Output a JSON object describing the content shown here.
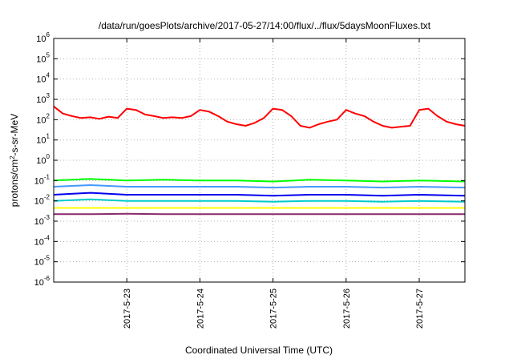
{
  "chart_data": {
    "type": "line",
    "title": "/data/run/goesPlots/archive/2017-05-27/14:00/flux/../flux/5daysMoonFluxes.txt",
    "xlabel": "Coordinated Universal Time (UTC)",
    "ylabel": {
      "pre": "protons/cm",
      "sup": "2",
      "post": "-s-sr-MeV"
    },
    "yscale": "log",
    "ylim": [
      1e-06,
      1000000.0
    ],
    "y_ticks": [
      {
        "exp": "-6",
        "value": 1e-06
      },
      {
        "exp": "-5",
        "value": 1e-05
      },
      {
        "exp": "-4",
        "value": 0.0001
      },
      {
        "exp": "-3",
        "value": 0.001
      },
      {
        "exp": "-2",
        "value": 0.01
      },
      {
        "exp": "-1",
        "value": 0.1
      },
      {
        "exp": "0",
        "value": 1
      },
      {
        "exp": "1",
        "value": 10
      },
      {
        "exp": "2",
        "value": 100
      },
      {
        "exp": "3",
        "value": 1000
      },
      {
        "exp": "4",
        "value": 10000
      },
      {
        "exp": "5",
        "value": 100000
      },
      {
        "exp": "6",
        "value": 1000000
      }
    ],
    "y_tick_base": "10",
    "xlim": [
      "2017-05-22 00:00",
      "2017-05-27 15:00"
    ],
    "x_ticks": [
      {
        "label": "2017-5-23",
        "date": "2017-05-23 00:00"
      },
      {
        "label": "2017-5-24",
        "date": "2017-05-24 00:00"
      },
      {
        "label": "2017-5-25",
        "date": "2017-05-25 00:00"
      },
      {
        "label": "2017-5-26",
        "date": "2017-05-26 00:00"
      },
      {
        "label": "2017-5-27",
        "date": "2017-05-27 00:00"
      }
    ],
    "grid": true,
    "series": [
      {
        "color": "#ff0000",
        "x": [
          "2017-05-22 00:00",
          "2017-05-22 03:00",
          "2017-05-22 06:00",
          "2017-05-22 09:00",
          "2017-05-22 12:00",
          "2017-05-22 15:00",
          "2017-05-22 18:00",
          "2017-05-22 21:00",
          "2017-05-23 00:00",
          "2017-05-23 03:00",
          "2017-05-23 06:00",
          "2017-05-23 09:00",
          "2017-05-23 12:00",
          "2017-05-23 15:00",
          "2017-05-23 18:00",
          "2017-05-23 21:00",
          "2017-05-24 00:00",
          "2017-05-24 03:00",
          "2017-05-24 06:00",
          "2017-05-24 09:00",
          "2017-05-24 12:00",
          "2017-05-24 15:00",
          "2017-05-24 18:00",
          "2017-05-24 21:00",
          "2017-05-25 00:00",
          "2017-05-25 03:00",
          "2017-05-25 06:00",
          "2017-05-25 09:00",
          "2017-05-25 12:00",
          "2017-05-25 15:00",
          "2017-05-25 18:00",
          "2017-05-25 21:00",
          "2017-05-26 00:00",
          "2017-05-26 03:00",
          "2017-05-26 06:00",
          "2017-05-26 09:00",
          "2017-05-26 12:00",
          "2017-05-26 15:00",
          "2017-05-26 18:00",
          "2017-05-26 21:00",
          "2017-05-27 00:00",
          "2017-05-27 03:00",
          "2017-05-27 06:00",
          "2017-05-27 09:00",
          "2017-05-27 12:00",
          "2017-05-27 15:00"
        ],
        "values": [
          450,
          200,
          150,
          120,
          130,
          110,
          140,
          120,
          350,
          300,
          180,
          150,
          120,
          130,
          120,
          150,
          300,
          250,
          150,
          80,
          60,
          50,
          70,
          120,
          350,
          300,
          150,
          50,
          40,
          60,
          80,
          100,
          300,
          200,
          150,
          80,
          50,
          40,
          45,
          50,
          300,
          350,
          150,
          80,
          60,
          50
        ]
      },
      {
        "color": "#00ff00",
        "x": [
          "2017-05-22 00:00",
          "2017-05-22 12:00",
          "2017-05-23 00:00",
          "2017-05-23 12:00",
          "2017-05-24 00:00",
          "2017-05-24 12:00",
          "2017-05-25 00:00",
          "2017-05-25 12:00",
          "2017-05-26 00:00",
          "2017-05-26 12:00",
          "2017-05-27 00:00",
          "2017-05-27 15:00"
        ],
        "values": [
          0.1,
          0.12,
          0.1,
          0.11,
          0.1,
          0.1,
          0.09,
          0.11,
          0.1,
          0.09,
          0.1,
          0.09
        ]
      },
      {
        "color": "#4499ff",
        "x": [
          "2017-05-22 00:00",
          "2017-05-22 12:00",
          "2017-05-23 00:00",
          "2017-05-23 12:00",
          "2017-05-24 00:00",
          "2017-05-24 12:00",
          "2017-05-25 00:00",
          "2017-05-25 12:00",
          "2017-05-26 00:00",
          "2017-05-26 12:00",
          "2017-05-27 00:00",
          "2017-05-27 15:00"
        ],
        "values": [
          0.05,
          0.06,
          0.05,
          0.05,
          0.05,
          0.05,
          0.045,
          0.05,
          0.05,
          0.045,
          0.05,
          0.045
        ]
      },
      {
        "color": "#0000ee",
        "x": [
          "2017-05-22 00:00",
          "2017-05-22 12:00",
          "2017-05-23 00:00",
          "2017-05-23 12:00",
          "2017-05-24 00:00",
          "2017-05-24 12:00",
          "2017-05-25 00:00",
          "2017-05-25 12:00",
          "2017-05-26 00:00",
          "2017-05-26 12:00",
          "2017-05-27 00:00",
          "2017-05-27 15:00"
        ],
        "values": [
          0.02,
          0.025,
          0.02,
          0.02,
          0.02,
          0.02,
          0.018,
          0.02,
          0.02,
          0.018,
          0.02,
          0.018
        ]
      },
      {
        "color": "#00cccc",
        "x": [
          "2017-05-22 00:00",
          "2017-05-22 12:00",
          "2017-05-23 00:00",
          "2017-05-23 12:00",
          "2017-05-24 00:00",
          "2017-05-24 12:00",
          "2017-05-25 00:00",
          "2017-05-25 12:00",
          "2017-05-26 00:00",
          "2017-05-26 12:00",
          "2017-05-27 00:00",
          "2017-05-27 15:00"
        ],
        "values": [
          0.01,
          0.012,
          0.01,
          0.01,
          0.01,
          0.01,
          0.009,
          0.01,
          0.01,
          0.009,
          0.01,
          0.009
        ]
      },
      {
        "color": "#ffff00",
        "x": [
          "2017-05-22 00:00",
          "2017-05-22 12:00",
          "2017-05-23 00:00",
          "2017-05-23 12:00",
          "2017-05-24 00:00",
          "2017-05-24 12:00",
          "2017-05-25 00:00",
          "2017-05-25 12:00",
          "2017-05-26 00:00",
          "2017-05-26 12:00",
          "2017-05-27 00:00",
          "2017-05-27 15:00"
        ],
        "values": [
          0.0045,
          0.0045,
          0.0045,
          0.0045,
          0.0045,
          0.0045,
          0.0045,
          0.0045,
          0.0045,
          0.0045,
          0.0045,
          0.0045
        ]
      },
      {
        "color": "#8b2a6b",
        "x": [
          "2017-05-22 00:00",
          "2017-05-22 12:00",
          "2017-05-23 00:00",
          "2017-05-23 12:00",
          "2017-05-24 00:00",
          "2017-05-24 12:00",
          "2017-05-25 00:00",
          "2017-05-25 12:00",
          "2017-05-26 00:00",
          "2017-05-26 12:00",
          "2017-05-27 00:00",
          "2017-05-27 15:00"
        ],
        "values": [
          0.0022,
          0.0022,
          0.0023,
          0.0022,
          0.0022,
          0.0022,
          0.0022,
          0.0022,
          0.0022,
          0.0022,
          0.0022,
          0.0022
        ]
      }
    ]
  }
}
